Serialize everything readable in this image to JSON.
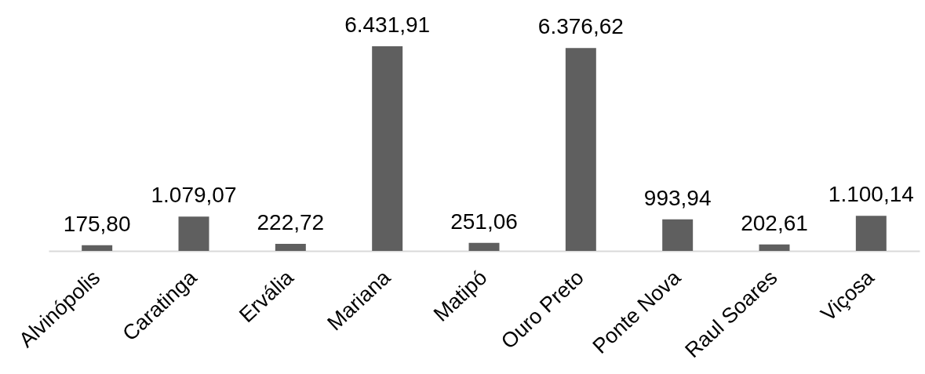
{
  "chart_data": {
    "type": "bar",
    "categories": [
      "Alvinópolis",
      "Caratinga",
      "Ervália",
      "Mariana",
      "Matipó",
      "Ouro Preto",
      "Ponte Nova",
      "Raul Soares",
      "Viçosa"
    ],
    "values": [
      175.8,
      1079.07,
      222.72,
      6431.91,
      251.06,
      6376.62,
      993.94,
      202.61,
      1100.14
    ],
    "value_labels": [
      "175,80",
      "1.079,07",
      "222,72",
      "6.431,91",
      "251,06",
      "6.376,62",
      "993,94",
      "202,61",
      "1.100,14"
    ],
    "color": "#5f5f5f"
  }
}
